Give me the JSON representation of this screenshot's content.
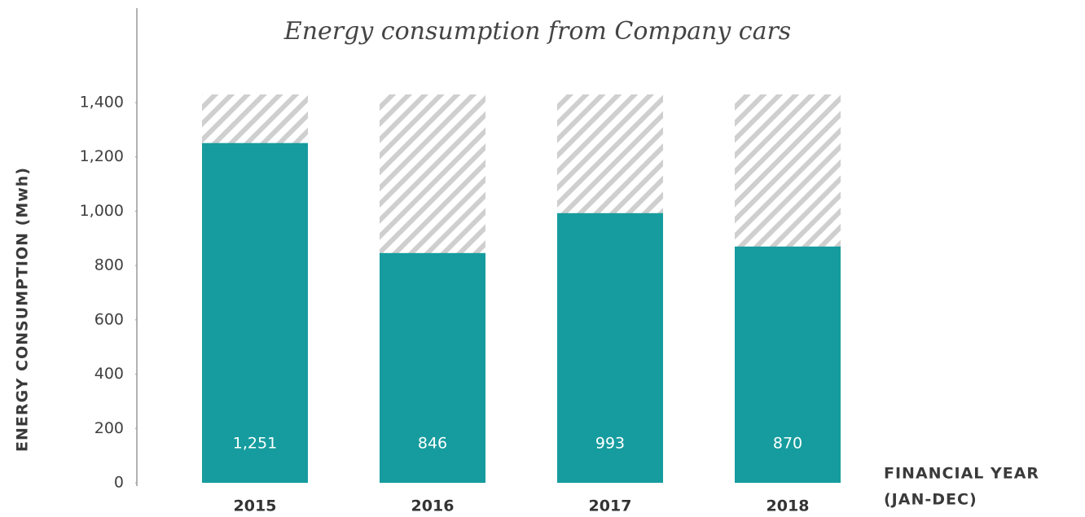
{
  "chart_data": {
    "type": "bar",
    "title": "Energy consumption from Company cars",
    "y_label": "ENERGY CONSUMPTION (Mwh)",
    "x_label": [
      "FINANCIAL YEAR",
      "(JAN-DEC)"
    ],
    "categories": [
      "2015",
      "2016",
      "2017",
      "2018"
    ],
    "values": [
      1251,
      846,
      993,
      870
    ],
    "value_labels": [
      "1,251",
      "846",
      "993",
      "870"
    ],
    "color": "#169c9e",
    "ylim": [
      0,
      1430
    ],
    "yticks": [
      0,
      200,
      400,
      600,
      800,
      {
        "value": 1000,
        "label": "1,000"
      },
      {
        "value": 1200,
        "label": "1,200"
      },
      {
        "value": 1400,
        "label": "1,400"
      }
    ],
    "grid": false
  }
}
